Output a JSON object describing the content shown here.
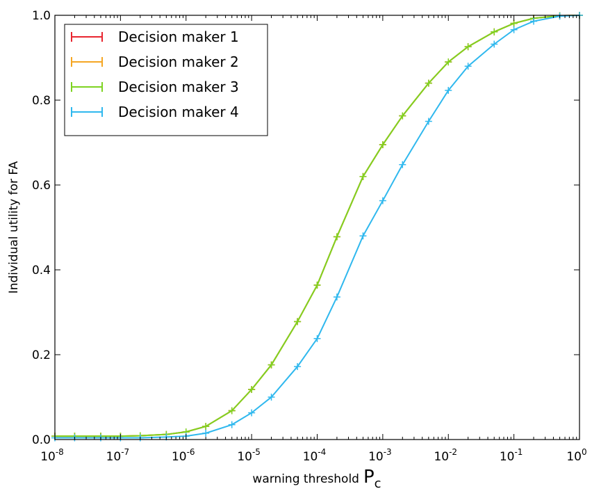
{
  "chart_data": {
    "type": "line",
    "xscale": "log",
    "xlim": [
      1e-08,
      1
    ],
    "ylim": [
      0.0,
      1.0
    ],
    "xlabel": "warning threshold",
    "xlabel_symbol": "P",
    "xlabel_subscript": "c",
    "ylabel": "Individual utility for FA",
    "x_ticks": [
      {
        "base": "10",
        "exp": "-8"
      },
      {
        "base": "10",
        "exp": "-7"
      },
      {
        "base": "10",
        "exp": "-6"
      },
      {
        "base": "10",
        "exp": "-5"
      },
      {
        "base": "10",
        "exp": "-4"
      },
      {
        "base": "10",
        "exp": "-3"
      },
      {
        "base": "10",
        "exp": "-2"
      },
      {
        "base": "10",
        "exp": "-1"
      },
      {
        "base": "10",
        "exp": "0"
      }
    ],
    "y_ticks": [
      "0.0",
      "0.2",
      "0.4",
      "0.6",
      "0.8",
      "1.0"
    ],
    "legend_position": "top-left",
    "grid": false,
    "x": [
      1e-08,
      2e-08,
      5e-08,
      1e-07,
      2e-07,
      5e-07,
      1e-06,
      2e-06,
      5e-06,
      1e-05,
      2e-05,
      5e-05,
      0.0001,
      0.0002,
      0.0005,
      0.001,
      0.002,
      0.005,
      0.01,
      0.02,
      0.05,
      0.1,
      0.2,
      0.5,
      1
    ],
    "series": [
      {
        "name": "Decision maker 1",
        "color": "#e8252f",
        "values": [
          0.008,
          0.008,
          0.008,
          0.008,
          0.009,
          0.012,
          0.018,
          0.031,
          0.068,
          0.118,
          0.176,
          0.278,
          0.364,
          0.478,
          0.62,
          0.695,
          0.763,
          0.84,
          0.89,
          0.926,
          0.961,
          0.981,
          0.993,
          0.999,
          1.0
        ]
      },
      {
        "name": "Decision maker 2",
        "color": "#f5a623",
        "values": [
          0.008,
          0.008,
          0.008,
          0.008,
          0.009,
          0.012,
          0.018,
          0.031,
          0.068,
          0.118,
          0.176,
          0.278,
          0.364,
          0.478,
          0.62,
          0.695,
          0.763,
          0.84,
          0.89,
          0.926,
          0.961,
          0.981,
          0.993,
          0.999,
          1.0
        ]
      },
      {
        "name": "Decision maker 3",
        "color": "#7ed321",
        "values": [
          0.008,
          0.008,
          0.008,
          0.008,
          0.009,
          0.012,
          0.018,
          0.031,
          0.068,
          0.118,
          0.176,
          0.278,
          0.364,
          0.478,
          0.62,
          0.695,
          0.763,
          0.84,
          0.89,
          0.926,
          0.961,
          0.981,
          0.993,
          0.999,
          1.0
        ]
      },
      {
        "name": "Decision maker 4",
        "color": "#2fb8ee",
        "values": [
          0.004,
          0.004,
          0.004,
          0.004,
          0.004,
          0.006,
          0.008,
          0.015,
          0.035,
          0.063,
          0.1,
          0.172,
          0.238,
          0.336,
          0.48,
          0.563,
          0.648,
          0.75,
          0.823,
          0.88,
          0.932,
          0.966,
          0.986,
          0.998,
          1.0
        ]
      }
    ]
  }
}
